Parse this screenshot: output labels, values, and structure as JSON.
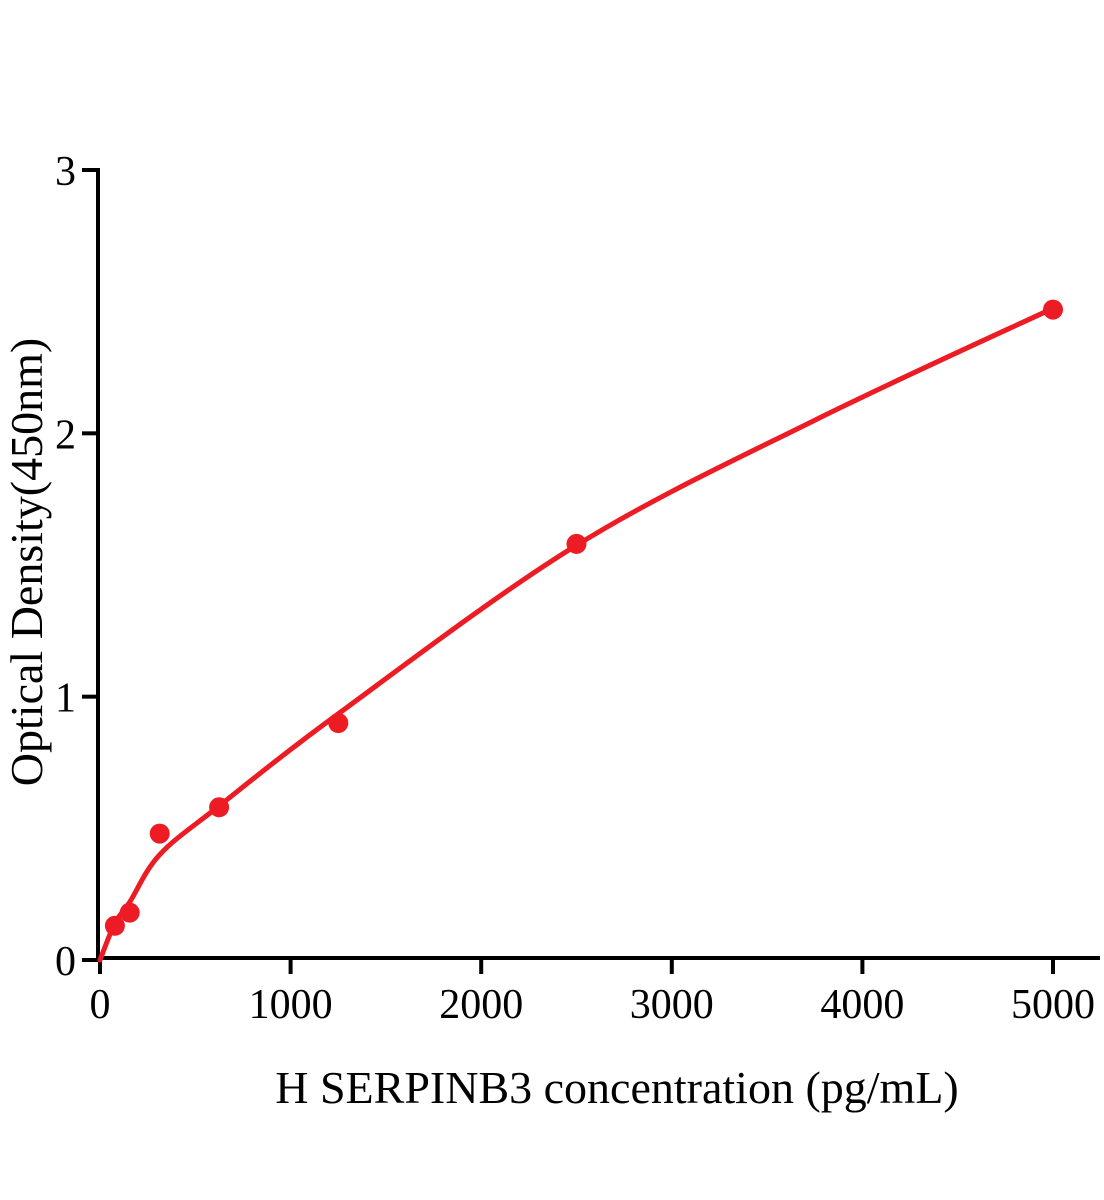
{
  "chart_data": {
    "type": "scatter",
    "title": "",
    "xlabel": "H SERPINB3 concentration (pg/mL)",
    "ylabel": "Optical Density(450nm)",
    "x": [
      78,
      156,
      313,
      625,
      1250,
      2500,
      5000
    ],
    "y": [
      0.13,
      0.18,
      0.48,
      0.58,
      0.9,
      1.58,
      2.47
    ],
    "curve_anchors": [
      [
        0,
        0
      ],
      [
        78,
        0.14
      ],
      [
        156,
        0.22
      ],
      [
        313,
        0.4
      ],
      [
        625,
        0.585
      ],
      [
        1250,
        0.935
      ],
      [
        2500,
        1.575
      ],
      [
        3750,
        2.05
      ],
      [
        5000,
        2.475
      ]
    ],
    "x_ticks": [
      0,
      1000,
      2000,
      3000,
      4000,
      5000
    ],
    "y_ticks": [
      0,
      1,
      2,
      3
    ],
    "xlim": [
      0,
      5245
    ],
    "ylim": [
      0,
      3
    ],
    "grid": false,
    "legend": "none",
    "point_color": "#ED1C24",
    "line_color": "#ED1C24",
    "axis_color": "#000000"
  }
}
